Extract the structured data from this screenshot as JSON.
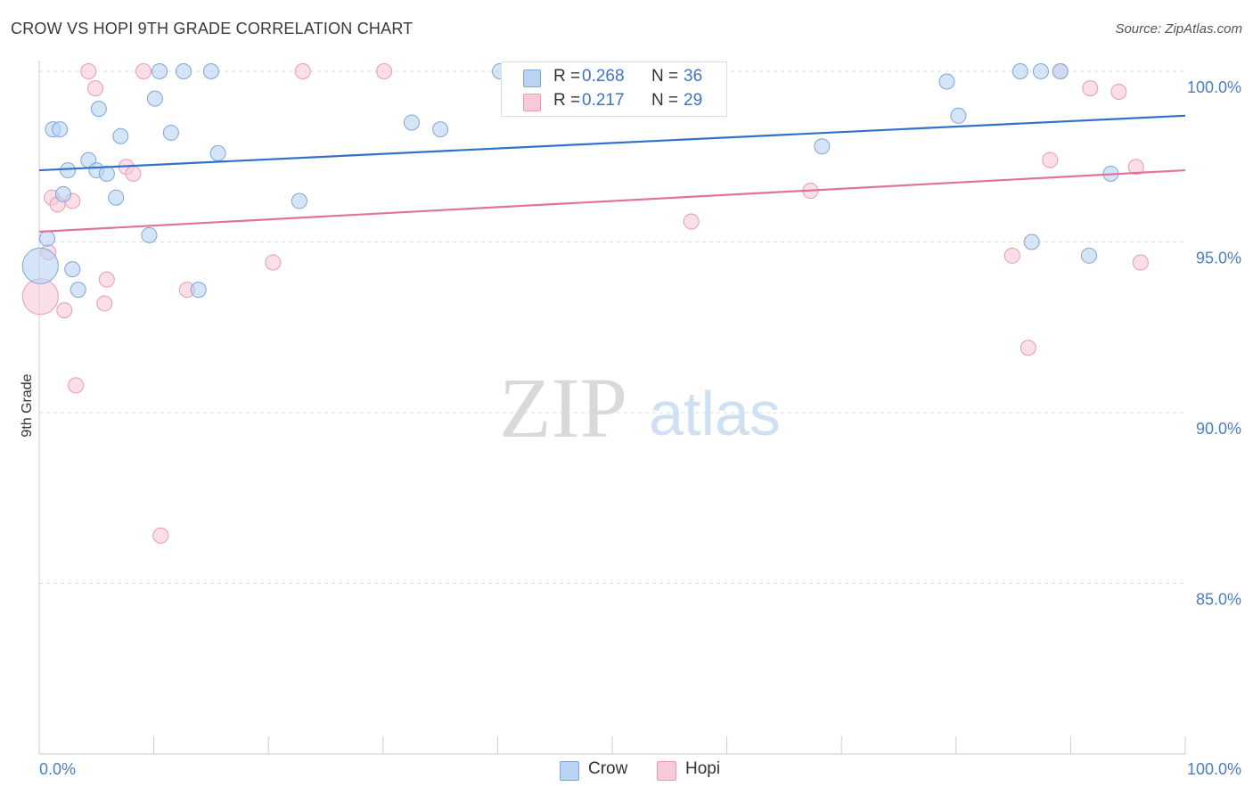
{
  "header": {
    "title": "CROW VS HOPI 9TH GRADE CORRELATION CHART",
    "source": "Source: ZipAtlas.com"
  },
  "legend": {
    "crow": {
      "r_label": "R =",
      "r_value": "0.268",
      "n_label": "N =",
      "n_value": "36"
    },
    "hopi": {
      "r_label": "R =",
      "r_value": "0.217",
      "n_label": "N =",
      "n_value": "29"
    }
  },
  "bottom_legend": {
    "crow": "Crow",
    "hopi": "Hopi"
  },
  "watermark": {
    "zip": "ZIP",
    "atlas": "atlas"
  },
  "colors": {
    "crow_fill": "#b9d3f2",
    "crow_stroke": "#7aa7dc",
    "crow_line": "#2f72c8",
    "hopi_fill": "#f8c9d8",
    "hopi_stroke": "#e99ab4",
    "hopi_line": "#e0739a",
    "tick_text": "#4a7fc1",
    "grid": "#dddddd"
  },
  "chart_data": {
    "type": "scatter",
    "title": "CROW VS HOPI 9TH GRADE CORRELATION CHART",
    "xlabel": "",
    "ylabel": "9th Grade",
    "xlim": [
      0,
      100
    ],
    "ylim": [
      80.5,
      100.8
    ],
    "x_tick_labels": [
      "0.0%",
      "100.0%"
    ],
    "y_ticks": [
      85,
      90,
      95,
      100
    ],
    "y_tick_labels": [
      "85.0%",
      "90.0%",
      "95.0%",
      "100.0%"
    ],
    "grid": "horizontal dashed",
    "legend_position": "top-center",
    "series": [
      {
        "name": "Crow",
        "r": 0.268,
        "n": 36,
        "trend": {
          "x": [
            0,
            100
          ],
          "y": [
            97.1,
            98.7
          ]
        },
        "points": [
          {
            "x": 0.1,
            "y": 94.3,
            "big": true
          },
          {
            "x": 0.7,
            "y": 95.1
          },
          {
            "x": 1.2,
            "y": 98.3
          },
          {
            "x": 1.8,
            "y": 98.3
          },
          {
            "x": 2.1,
            "y": 96.4
          },
          {
            "x": 2.5,
            "y": 97.1
          },
          {
            "x": 2.9,
            "y": 94.2
          },
          {
            "x": 3.4,
            "y": 93.6
          },
          {
            "x": 4.3,
            "y": 97.4
          },
          {
            "x": 5.0,
            "y": 97.1
          },
          {
            "x": 5.2,
            "y": 98.9
          },
          {
            "x": 5.9,
            "y": 97.0
          },
          {
            "x": 6.7,
            "y": 96.3
          },
          {
            "x": 7.1,
            "y": 98.1
          },
          {
            "x": 9.6,
            "y": 95.2
          },
          {
            "x": 10.1,
            "y": 99.2
          },
          {
            "x": 10.5,
            "y": 100.0
          },
          {
            "x": 11.5,
            "y": 98.2
          },
          {
            "x": 12.6,
            "y": 100.0
          },
          {
            "x": 13.9,
            "y": 93.6
          },
          {
            "x": 15.0,
            "y": 100.0
          },
          {
            "x": 15.6,
            "y": 97.6
          },
          {
            "x": 22.7,
            "y": 96.2
          },
          {
            "x": 32.5,
            "y": 98.5
          },
          {
            "x": 35.0,
            "y": 98.3
          },
          {
            "x": 40.2,
            "y": 100.0
          },
          {
            "x": 56.3,
            "y": 100.0
          },
          {
            "x": 68.3,
            "y": 97.8
          },
          {
            "x": 79.2,
            "y": 99.7
          },
          {
            "x": 80.2,
            "y": 98.7
          },
          {
            "x": 85.6,
            "y": 100.0
          },
          {
            "x": 86.6,
            "y": 95.0
          },
          {
            "x": 87.4,
            "y": 100.0
          },
          {
            "x": 89.1,
            "y": 100.0
          },
          {
            "x": 91.6,
            "y": 94.6
          },
          {
            "x": 93.5,
            "y": 97.0
          }
        ]
      },
      {
        "name": "Hopi",
        "r": 0.217,
        "n": 29,
        "trend": {
          "x": [
            0,
            100
          ],
          "y": [
            95.3,
            97.1
          ]
        },
        "points": [
          {
            "x": 0.1,
            "y": 93.4,
            "big": true
          },
          {
            "x": 0.8,
            "y": 94.7
          },
          {
            "x": 1.1,
            "y": 96.3
          },
          {
            "x": 1.6,
            "y": 96.1
          },
          {
            "x": 2.2,
            "y": 93.0
          },
          {
            "x": 2.9,
            "y": 96.2
          },
          {
            "x": 3.2,
            "y": 90.8
          },
          {
            "x": 4.3,
            "y": 100.0
          },
          {
            "x": 4.9,
            "y": 99.5
          },
          {
            "x": 5.7,
            "y": 93.2
          },
          {
            "x": 5.9,
            "y": 93.9
          },
          {
            "x": 7.6,
            "y": 97.2
          },
          {
            "x": 8.2,
            "y": 97.0
          },
          {
            "x": 9.1,
            "y": 100.0
          },
          {
            "x": 10.6,
            "y": 86.4
          },
          {
            "x": 12.9,
            "y": 93.6
          },
          {
            "x": 20.4,
            "y": 94.4
          },
          {
            "x": 23.0,
            "y": 100.0
          },
          {
            "x": 30.1,
            "y": 100.0
          },
          {
            "x": 56.9,
            "y": 95.6
          },
          {
            "x": 67.3,
            "y": 96.5
          },
          {
            "x": 84.9,
            "y": 94.6
          },
          {
            "x": 86.3,
            "y": 91.9
          },
          {
            "x": 88.2,
            "y": 97.4
          },
          {
            "x": 89.1,
            "y": 100.0
          },
          {
            "x": 91.7,
            "y": 99.5
          },
          {
            "x": 94.2,
            "y": 99.4
          },
          {
            "x": 95.7,
            "y": 97.2
          },
          {
            "x": 96.1,
            "y": 94.4
          }
        ]
      }
    ]
  }
}
